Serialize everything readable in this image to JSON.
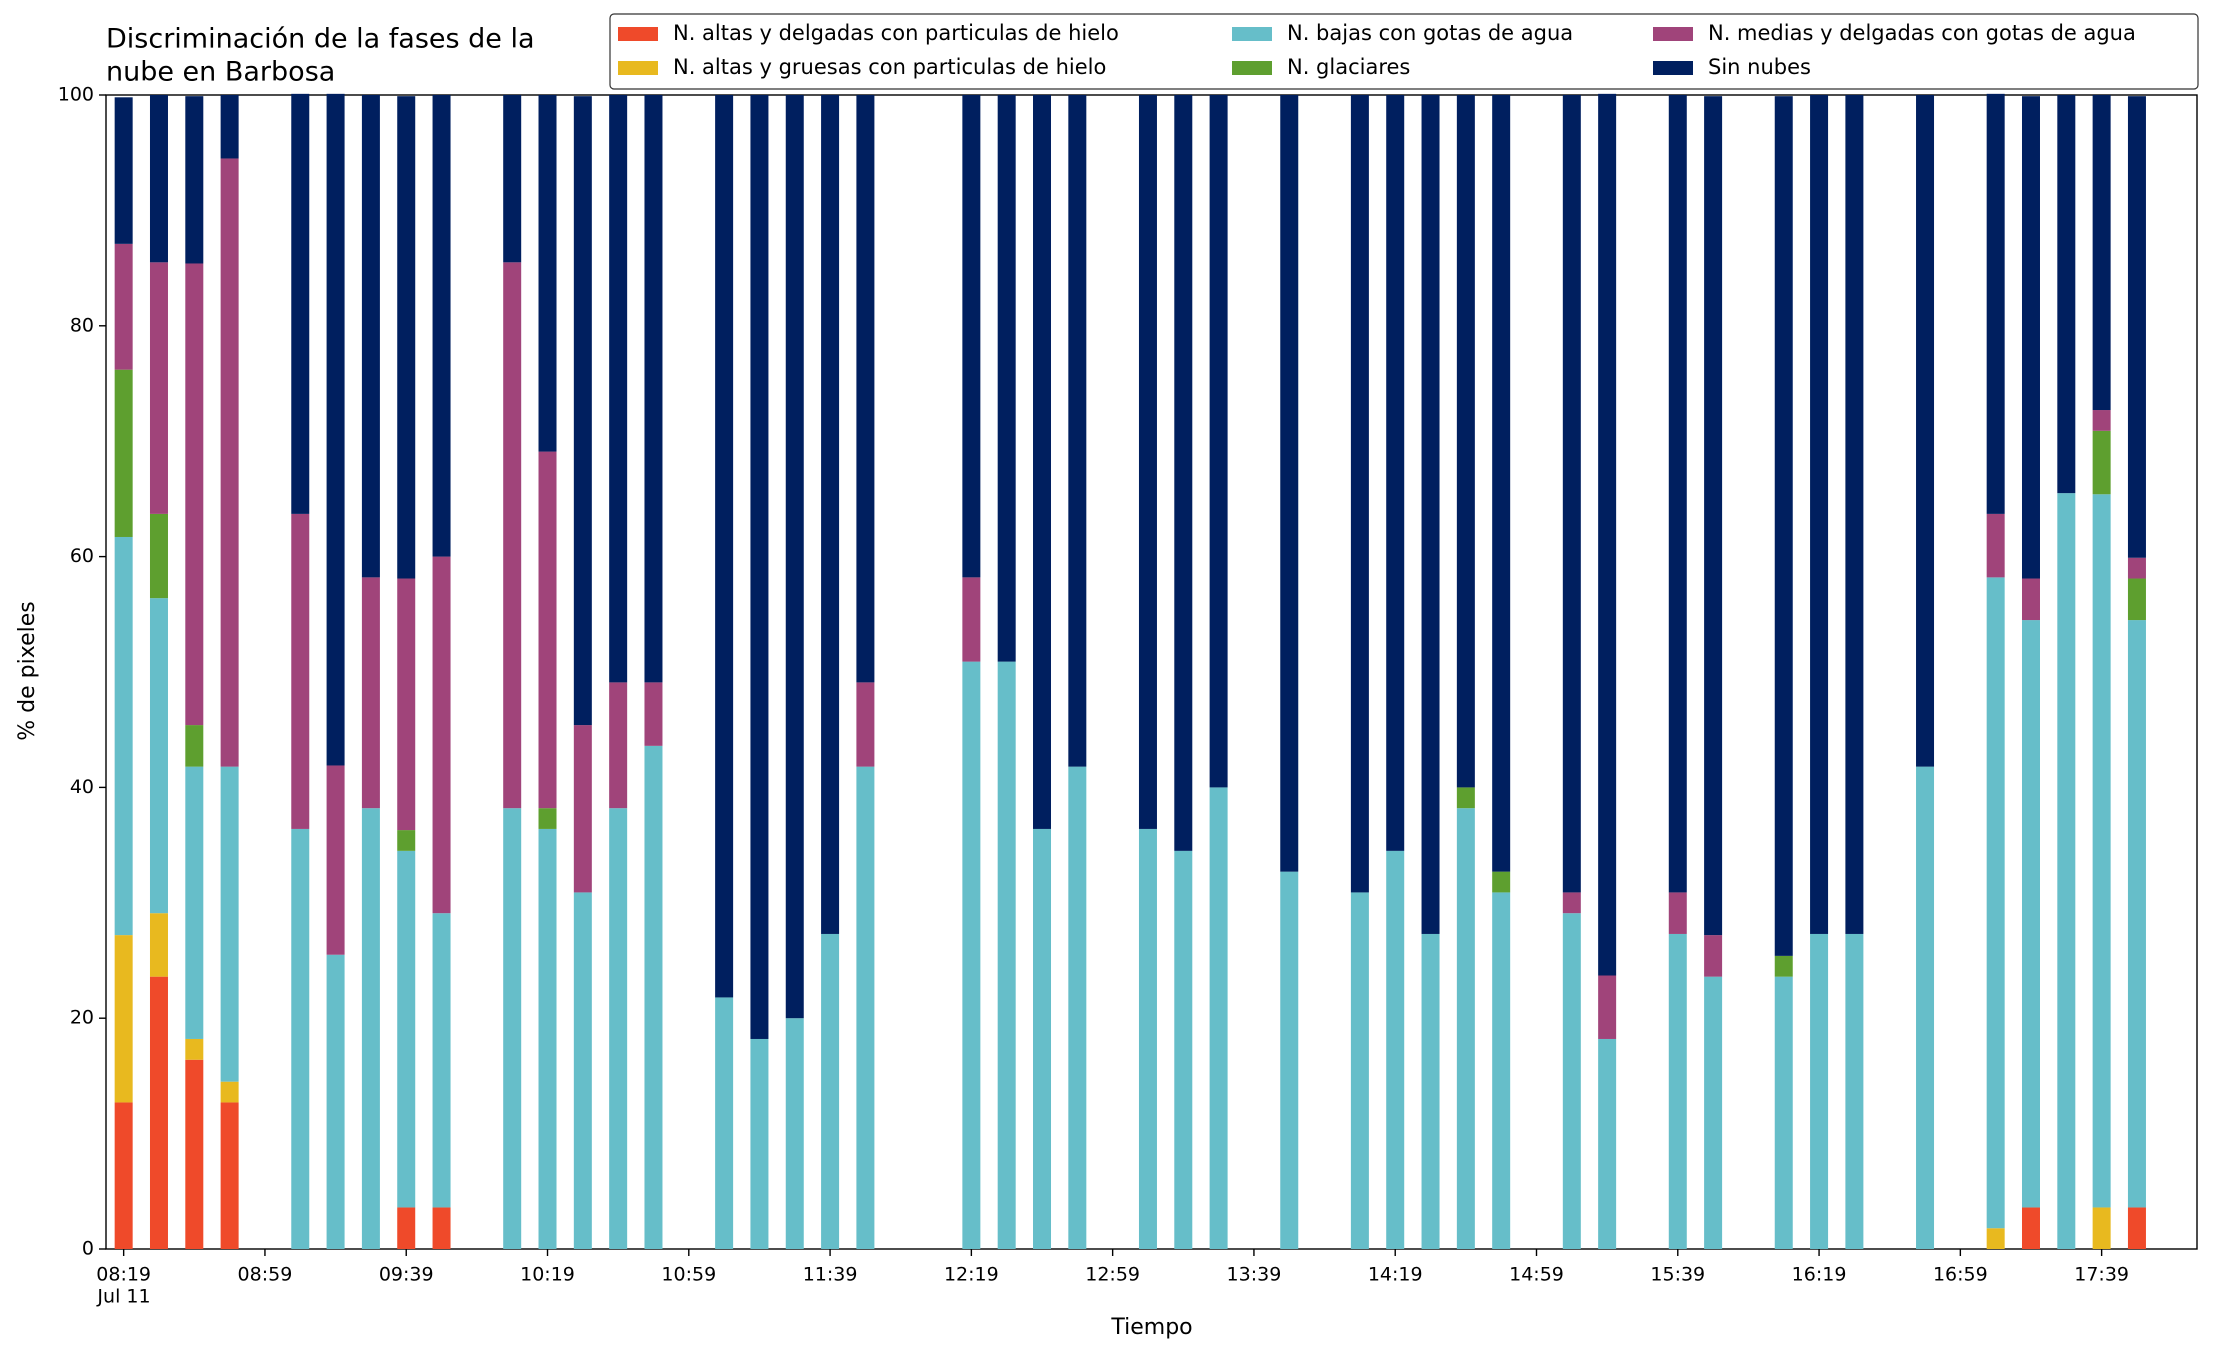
{
  "chart_data": {
    "type": "stacked_bar",
    "title": [
      "Discriminación de la fases de la",
      "nube en Barbosa"
    ],
    "xlabel": "Tiempo",
    "ylabel": "% de pixeles",
    "x": [
      "08:19",
      "08:29",
      "08:39",
      "08:49",
      "09:09",
      "09:19",
      "09:29",
      "09:39",
      "09:49",
      "10:09",
      "10:19",
      "10:29",
      "10:39",
      "10:49",
      "11:09",
      "11:19",
      "11:29",
      "11:39",
      "11:49",
      "12:19",
      "12:29",
      "12:39",
      "12:49",
      "13:09",
      "13:19",
      "13:29",
      "13:49",
      "14:09",
      "14:19",
      "14:29",
      "14:39",
      "14:49",
      "15:09",
      "15:19",
      "15:39",
      "15:49",
      "16:09",
      "16:19",
      "16:29",
      "16:49",
      "17:09",
      "17:19",
      "17:29",
      "17:39",
      "17:49"
    ],
    "xlim": [
      "08:14",
      "18:06"
    ],
    "xticks": [
      "08:19",
      "08:59",
      "09:39",
      "10:19",
      "10:59",
      "11:39",
      "12:19",
      "12:59",
      "13:39",
      "14:19",
      "14:59",
      "15:39",
      "16:19",
      "16:59",
      "17:39"
    ],
    "xtick_date": "Jul 11",
    "ylim": [
      0,
      100
    ],
    "yticks": [
      0,
      20,
      40,
      60,
      80,
      100
    ],
    "grid": false,
    "legend": "upper right",
    "series": [
      {
        "name": "N. altas y delgadas con particulas de hielo",
        "color": "#ef4a2a",
        "values": [
          12.7,
          23.6,
          16.4,
          12.7,
          0,
          0,
          0,
          3.6,
          3.6,
          0,
          0,
          0,
          0,
          0,
          0,
          0,
          0,
          0,
          0,
          0,
          0,
          0,
          0,
          0,
          0,
          0,
          0,
          0,
          0,
          0,
          0,
          0,
          0,
          0,
          0,
          0,
          0,
          0,
          0,
          0,
          0,
          3.6,
          0,
          0,
          3.6
        ]
      },
      {
        "name": "N. altas y gruesas con particulas de hielo",
        "color": "#e8b91f",
        "values": [
          14.5,
          5.5,
          1.8,
          1.8,
          0,
          0,
          0,
          0,
          0,
          0,
          0,
          0,
          0,
          0,
          0,
          0,
          0,
          0,
          0,
          0,
          0,
          0,
          0,
          0,
          0,
          0,
          0,
          0,
          0,
          0,
          0,
          0,
          0,
          0,
          0,
          0,
          0,
          0,
          0,
          0,
          1.8,
          0,
          0,
          3.6,
          0
        ]
      },
      {
        "name": "N. bajas con gotas de agua",
        "color": "#66bec9",
        "values": [
          34.5,
          27.3,
          23.6,
          27.3,
          36.4,
          25.5,
          38.2,
          30.9,
          25.5,
          38.2,
          36.4,
          30.9,
          38.2,
          43.6,
          21.8,
          18.2,
          20,
          27.3,
          41.8,
          50.9,
          50.9,
          36.4,
          41.8,
          36.4,
          34.5,
          40,
          32.7,
          30.9,
          34.5,
          27.3,
          38.2,
          30.9,
          29.1,
          18.2,
          27.3,
          23.6,
          23.6,
          27.3,
          27.3,
          41.8,
          56.4,
          50.9,
          65.5,
          61.8,
          50.9
        ]
      },
      {
        "name": "N. glaciares",
        "color": "#5e9f2f",
        "values": [
          14.5,
          7.3,
          3.6,
          0,
          0,
          0,
          0,
          1.8,
          0,
          0,
          1.8,
          0,
          0,
          0,
          0,
          0,
          0,
          0,
          0,
          0,
          0,
          0,
          0,
          0,
          0,
          0,
          0,
          0,
          0,
          0,
          1.8,
          1.8,
          0,
          0,
          0,
          0,
          1.8,
          0,
          0,
          0,
          0,
          0,
          0,
          5.5,
          3.6
        ]
      },
      {
        "name": "N. medias y delgadas con gotas de agua",
        "color": "#a0447a",
        "values": [
          10.9,
          21.8,
          40,
          52.7,
          27.3,
          16.4,
          20,
          21.8,
          30.9,
          47.3,
          30.9,
          14.5,
          10.9,
          5.5,
          0,
          0,
          0,
          0,
          7.3,
          7.3,
          0,
          0,
          0,
          0,
          0,
          0,
          0,
          0,
          0,
          0,
          0,
          0,
          1.8,
          5.5,
          3.6,
          3.6,
          0,
          0,
          0,
          0,
          5.5,
          3.6,
          0,
          1.8,
          1.8
        ]
      },
      {
        "name": "Sin nubes",
        "color": "#001f5f",
        "values": [
          12.7,
          14.5,
          14.5,
          5.5,
          36.4,
          58.2,
          41.8,
          41.8,
          40,
          14.5,
          30.9,
          54.5,
          50.9,
          50.9,
          78.2,
          81.8,
          80,
          72.7,
          50.9,
          41.8,
          49.1,
          63.6,
          58.2,
          63.6,
          65.5,
          60,
          67.3,
          69.1,
          65.5,
          72.7,
          60,
          67.3,
          69.1,
          76.4,
          69.1,
          72.7,
          74.5,
          72.7,
          72.7,
          58.2,
          36.4,
          41.8,
          34.5,
          27.3,
          40
        ]
      }
    ]
  }
}
